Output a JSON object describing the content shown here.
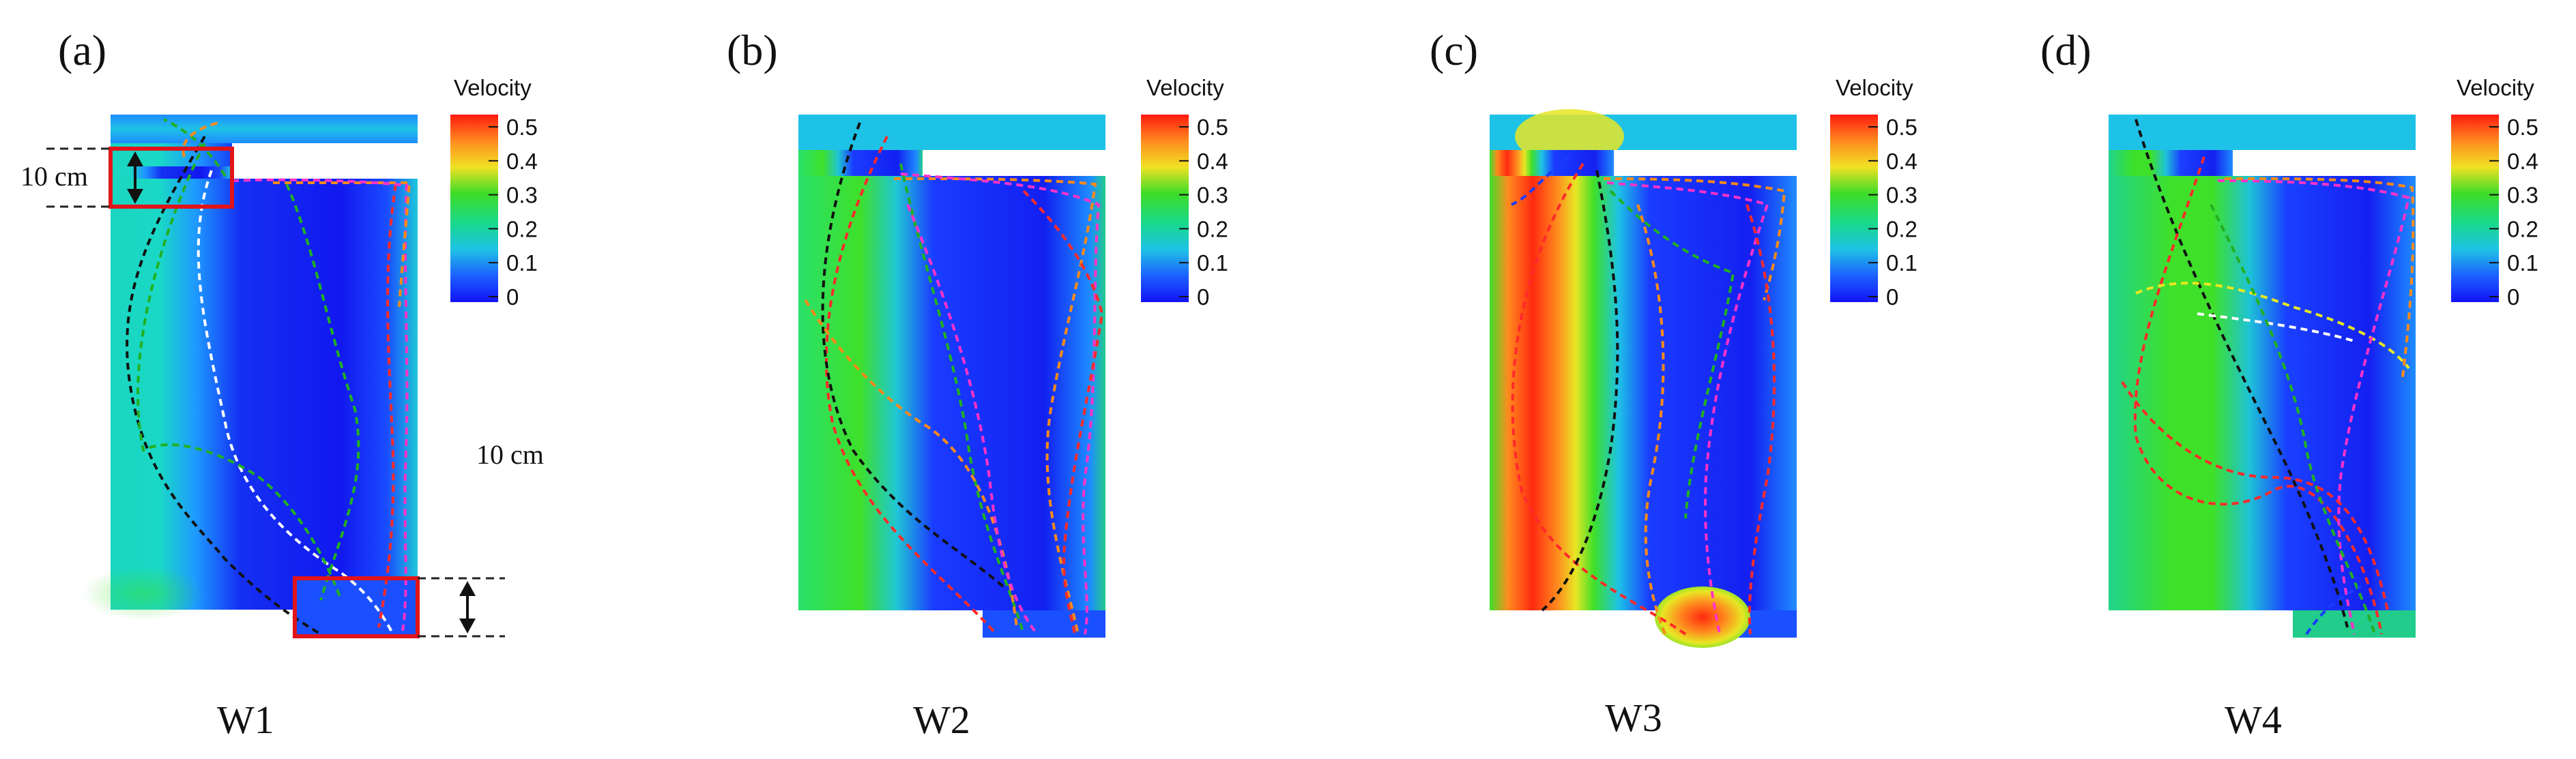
{
  "panels": [
    {
      "letter": "(a)",
      "case": "W1",
      "legend_title": "Velocity"
    },
    {
      "letter": "(b)",
      "case": "W2",
      "legend_title": "Velocity"
    },
    {
      "letter": "(c)",
      "case": "W3",
      "legend_title": "Velocity"
    },
    {
      "letter": "(d)",
      "case": "W4",
      "legend_title": "Velocity"
    }
  ],
  "legend_ticks": [
    "0.5",
    "0.4",
    "0.3",
    "0.2",
    "0.1",
    "0"
  ],
  "legend_colors": [
    "#ff1a10",
    "#ff8a1e",
    "#f0e224",
    "#3fdc27",
    "#19d98b",
    "#1ec2e6",
    "#1c60ff",
    "#1212f5"
  ],
  "annotations": {
    "inlet_dimension": "10 cm",
    "outlet_dimension": "10 cm"
  },
  "highlight_color": "#e0141a",
  "trajectory_colors": [
    "#ff2a2a",
    "#ff8a18",
    "#22b022",
    "#ff32c8",
    "#111111",
    "#ffffff",
    "#e8e820",
    "#1a3cff"
  ]
}
